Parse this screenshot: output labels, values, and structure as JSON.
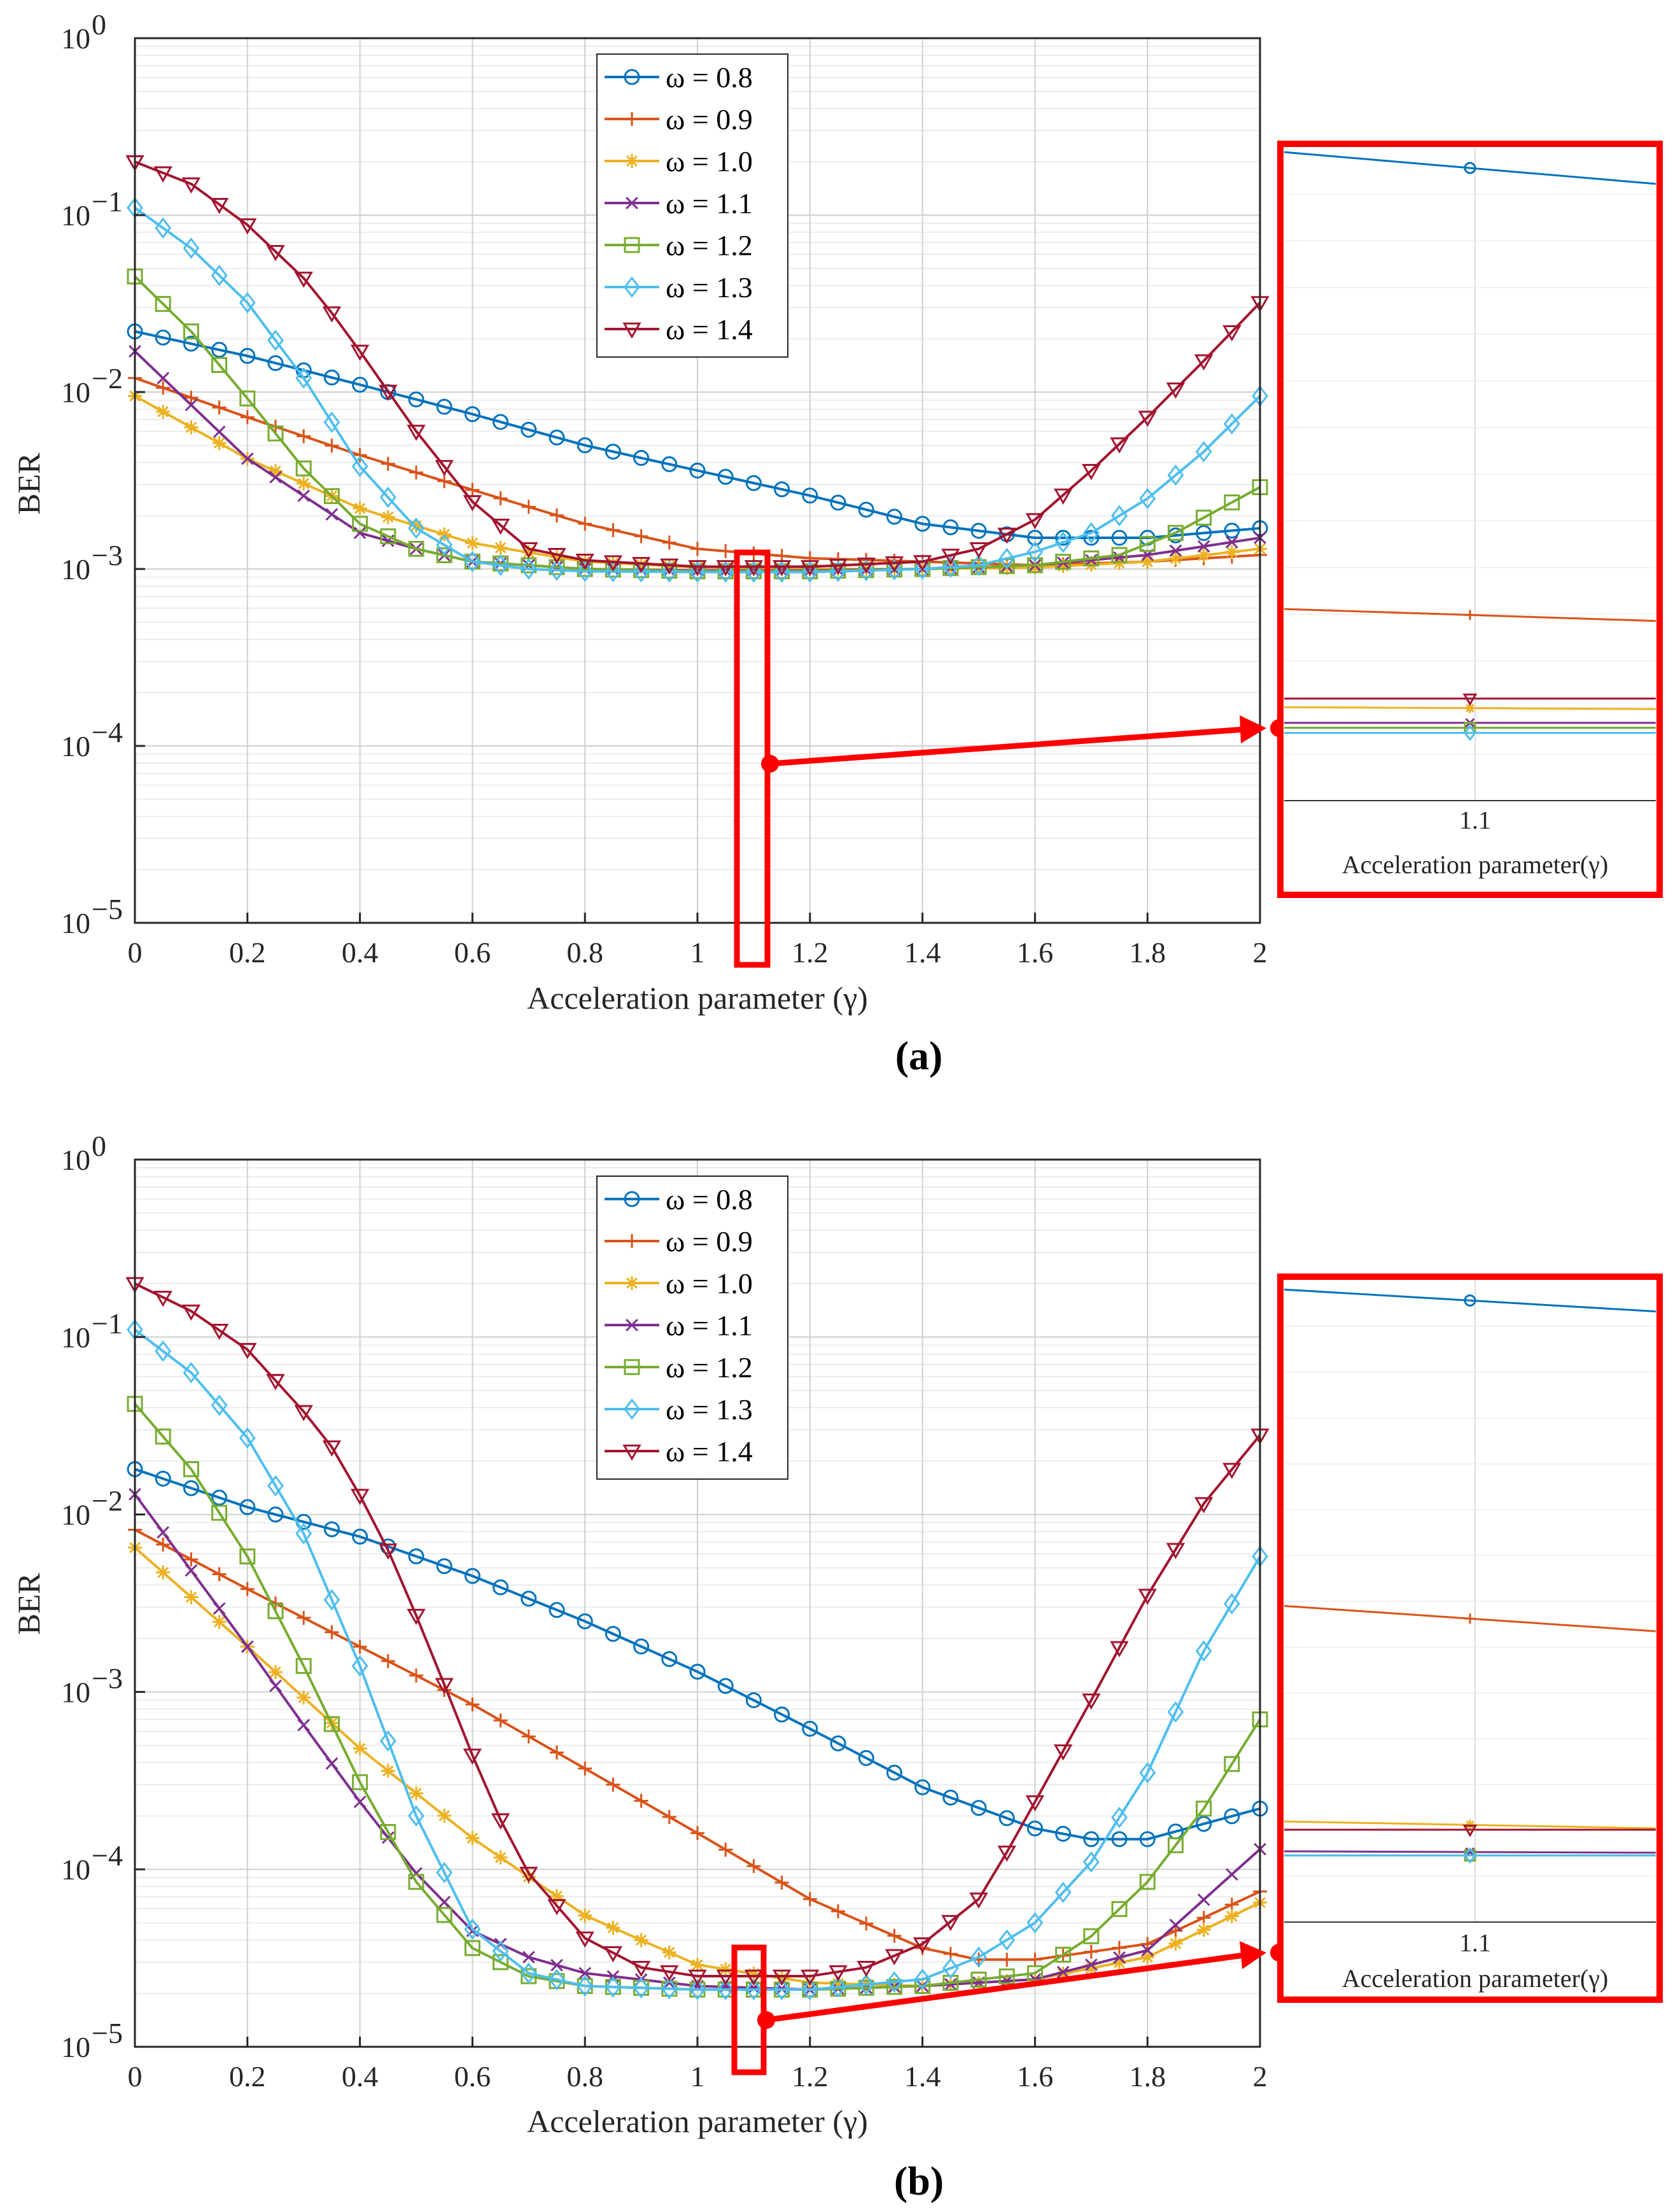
{
  "colors": {
    "s08": "#0072BD",
    "s09": "#D95319",
    "s10": "#EDB120",
    "s11": "#7E2F8E",
    "s12": "#77AC30",
    "s13": "#4DBEEE",
    "s14": "#A2142F",
    "highlight": "#FF0000"
  },
  "chart_data": [
    {
      "panel_label": "(a)",
      "type": "line",
      "yscale": "log",
      "xlabel": "Acceleration parameter (γ)",
      "ylabel": "BER",
      "xlim": [
        0,
        2
      ],
      "ylim_exp": [
        -5,
        0
      ],
      "x_ticks": [
        "0",
        "0.2",
        "0.4",
        "0.6",
        "0.8",
        "1",
        "1.2",
        "1.4",
        "1.6",
        "1.8",
        "2"
      ],
      "y_ticks": [
        {
          "exp": "0"
        },
        {
          "exp": "−1"
        },
        {
          "exp": "−2"
        },
        {
          "exp": "−3"
        },
        {
          "exp": "−4"
        },
        {
          "exp": "−5"
        }
      ],
      "grid": true,
      "legend_position": "top-center",
      "series": [
        {
          "name": "ω = 0.8",
          "omega": "0.8",
          "marker": "circle",
          "anchors": [
            [
              0,
              0.022
            ],
            [
              0.2,
              0.016
            ],
            [
              0.4,
              0.011
            ],
            [
              0.6,
              0.0075
            ],
            [
              0.8,
              0.005
            ],
            [
              1.0,
              0.0036
            ],
            [
              1.2,
              0.0026
            ],
            [
              1.4,
              0.0018
            ],
            [
              1.6,
              0.0015
            ],
            [
              1.8,
              0.0015
            ],
            [
              2.0,
              0.0017
            ]
          ]
        },
        {
          "name": "ω = 0.9",
          "omega": "0.9",
          "marker": "plus",
          "anchors": [
            [
              0,
              0.012
            ],
            [
              0.2,
              0.0072
            ],
            [
              0.4,
              0.0044
            ],
            [
              0.6,
              0.0028
            ],
            [
              0.8,
              0.0018
            ],
            [
              1.0,
              0.0013
            ],
            [
              1.2,
              0.00115
            ],
            [
              1.4,
              0.0011
            ],
            [
              1.6,
              0.00105
            ],
            [
              1.8,
              0.0011
            ],
            [
              2.0,
              0.0012
            ]
          ]
        },
        {
          "name": "ω = 1.0",
          "omega": "1.0",
          "marker": "star",
          "anchors": [
            [
              0,
              0.0095
            ],
            [
              0.2,
              0.0042
            ],
            [
              0.4,
              0.0022
            ],
            [
              0.6,
              0.0014
            ],
            [
              0.8,
              0.0011
            ],
            [
              1.0,
              0.00102
            ],
            [
              1.2,
              0.001
            ],
            [
              1.4,
              0.001
            ],
            [
              1.6,
              0.00102
            ],
            [
              1.8,
              0.0011
            ],
            [
              2.0,
              0.0013
            ]
          ]
        },
        {
          "name": "ω = 1.1",
          "omega": "1.1",
          "marker": "cross",
          "anchors": [
            [
              0,
              0.017
            ],
            [
              0.2,
              0.0042
            ],
            [
              0.4,
              0.0016
            ],
            [
              0.5,
              0.0013
            ],
            [
              0.6,
              0.0011
            ],
            [
              0.8,
              0.001
            ],
            [
              1.0,
              0.00098
            ],
            [
              1.2,
              0.00098
            ],
            [
              1.4,
              0.001
            ],
            [
              1.6,
              0.00105
            ],
            [
              1.8,
              0.0012
            ],
            [
              2.0,
              0.0015
            ]
          ]
        },
        {
          "name": "ω = 1.2",
          "omega": "1.2",
          "marker": "square",
          "anchors": [
            [
              0,
              0.045
            ],
            [
              0.1,
              0.022
            ],
            [
              0.2,
              0.0092
            ],
            [
              0.3,
              0.0037
            ],
            [
              0.4,
              0.0018
            ],
            [
              0.5,
              0.0013
            ],
            [
              0.6,
              0.0011
            ],
            [
              0.8,
              0.001
            ],
            [
              1.0,
              0.00097
            ],
            [
              1.2,
              0.00097
            ],
            [
              1.4,
              0.001
            ],
            [
              1.6,
              0.00105
            ],
            [
              1.75,
              0.0012
            ],
            [
              1.85,
              0.0016
            ],
            [
              2.0,
              0.0029
            ]
          ]
        },
        {
          "name": "ω = 1.3",
          "omega": "1.3",
          "marker": "diamond",
          "anchors": [
            [
              0,
              0.11
            ],
            [
              0.1,
              0.065
            ],
            [
              0.2,
              0.032
            ],
            [
              0.3,
              0.012
            ],
            [
              0.4,
              0.0038
            ],
            [
              0.5,
              0.0017
            ],
            [
              0.6,
              0.0011
            ],
            [
              0.7,
              0.001
            ],
            [
              0.8,
              0.00097
            ],
            [
              1.0,
              0.00096
            ],
            [
              1.2,
              0.00096
            ],
            [
              1.4,
              0.001
            ],
            [
              1.5,
              0.00105
            ],
            [
              1.6,
              0.00125
            ],
            [
              1.7,
              0.0016
            ],
            [
              1.8,
              0.0025
            ],
            [
              1.9,
              0.0046
            ],
            [
              2.0,
              0.0095
            ]
          ]
        },
        {
          "name": "ω = 1.4",
          "omega": "1.4",
          "marker": "triangle-down",
          "anchors": [
            [
              0,
              0.2
            ],
            [
              0.1,
              0.15
            ],
            [
              0.2,
              0.088
            ],
            [
              0.3,
              0.044
            ],
            [
              0.35,
              0.028
            ],
            [
              0.4,
              0.017
            ],
            [
              0.5,
              0.006
            ],
            [
              0.6,
              0.0024
            ],
            [
              0.7,
              0.0013
            ],
            [
              0.8,
              0.00112
            ],
            [
              1.0,
              0.00103
            ],
            [
              1.2,
              0.00103
            ],
            [
              1.4,
              0.0011
            ],
            [
              1.5,
              0.0013
            ],
            [
              1.6,
              0.0019
            ],
            [
              1.7,
              0.0036
            ],
            [
              1.8,
              0.0072
            ],
            [
              1.9,
              0.015
            ],
            [
              2.0,
              0.032
            ]
          ]
        }
      ],
      "inset": {
        "x_tick": "1.1",
        "xlabel": "Acceleration parameter(γ)"
      }
    },
    {
      "panel_label": "(b)",
      "type": "line",
      "yscale": "log",
      "xlabel": "Acceleration parameter (γ)",
      "ylabel": "BER",
      "xlim": [
        0,
        2
      ],
      "ylim_exp": [
        -5,
        0
      ],
      "x_ticks": [
        "0",
        "0.2",
        "0.4",
        "0.6",
        "0.8",
        "1",
        "1.2",
        "1.4",
        "1.6",
        "1.8",
        "2"
      ],
      "y_ticks": [
        {
          "exp": "0"
        },
        {
          "exp": "−1"
        },
        {
          "exp": "−2"
        },
        {
          "exp": "−3"
        },
        {
          "exp": "−4"
        },
        {
          "exp": "−5"
        }
      ],
      "grid": true,
      "legend_position": "top-center",
      "series": [
        {
          "name": "ω = 0.8",
          "omega": "0.8",
          "marker": "circle",
          "anchors": [
            [
              0,
              0.018
            ],
            [
              0.2,
              0.011
            ],
            [
              0.4,
              0.0075
            ],
            [
              0.6,
              0.0045
            ],
            [
              0.8,
              0.0025
            ],
            [
              1.0,
              0.0013
            ],
            [
              1.2,
              0.00062
            ],
            [
              1.4,
              0.00029
            ],
            [
              1.6,
              0.00017
            ],
            [
              1.7,
              0.000148
            ],
            [
              1.8,
              0.000148
            ],
            [
              2.0,
              0.00022
            ]
          ]
        },
        {
          "name": "ω = 0.9",
          "omega": "0.9",
          "marker": "plus",
          "anchors": [
            [
              0,
              0.0082
            ],
            [
              0.2,
              0.0038
            ],
            [
              0.4,
              0.0018
            ],
            [
              0.6,
              0.00085
            ],
            [
              0.8,
              0.00037
            ],
            [
              1.0,
              0.00016
            ],
            [
              1.2,
              6.8e-05
            ],
            [
              1.4,
              3.6e-05
            ],
            [
              1.5,
              3.1e-05
            ],
            [
              1.6,
              3.1e-05
            ],
            [
              1.8,
              3.8e-05
            ],
            [
              2.0,
              7.5e-05
            ]
          ]
        },
        {
          "name": "ω = 1.0",
          "omega": "1.0",
          "marker": "star",
          "anchors": [
            [
              0,
              0.0065
            ],
            [
              0.2,
              0.0018
            ],
            [
              0.4,
              0.00048
            ],
            [
              0.6,
              0.00015
            ],
            [
              0.8,
              5.5e-05
            ],
            [
              1.0,
              2.9e-05
            ],
            [
              1.2,
              2.3e-05
            ],
            [
              1.4,
              2.2e-05
            ],
            [
              1.6,
              2.4e-05
            ],
            [
              1.8,
              3.2e-05
            ],
            [
              2.0,
              6.5e-05
            ]
          ]
        },
        {
          "name": "ω = 1.1",
          "omega": "1.1",
          "marker": "cross",
          "anchors": [
            [
              0,
              0.013
            ],
            [
              0.2,
              0.0018
            ],
            [
              0.3,
              0.00065
            ],
            [
              0.4,
              0.00024
            ],
            [
              0.5,
              9.5e-05
            ],
            [
              0.6,
              4.5e-05
            ],
            [
              0.7,
              3.2e-05
            ],
            [
              0.8,
              2.6e-05
            ],
            [
              1.0,
              2.2e-05
            ],
            [
              1.2,
              2.1e-05
            ],
            [
              1.4,
              2.2e-05
            ],
            [
              1.6,
              2.4e-05
            ],
            [
              1.8,
              3.5e-05
            ],
            [
              2.0,
              0.00013
            ]
          ]
        },
        {
          "name": "ω = 1.2",
          "omega": "1.2",
          "marker": "square",
          "anchors": [
            [
              0,
              0.042
            ],
            [
              0.1,
              0.018
            ],
            [
              0.2,
              0.0058
            ],
            [
              0.3,
              0.0014
            ],
            [
              0.4,
              0.00031
            ],
            [
              0.5,
              8.5e-05
            ],
            [
              0.6,
              3.6e-05
            ],
            [
              0.7,
              2.5e-05
            ],
            [
              0.8,
              2.2e-05
            ],
            [
              1.0,
              2.1e-05
            ],
            [
              1.2,
              2.1e-05
            ],
            [
              1.4,
              2.2e-05
            ],
            [
              1.6,
              2.6e-05
            ],
            [
              1.7,
              4.2e-05
            ],
            [
              1.8,
              8.5e-05
            ],
            [
              1.9,
              0.00022
            ],
            [
              2.0,
              0.0007
            ]
          ]
        },
        {
          "name": "ω = 1.3",
          "omega": "1.3",
          "marker": "diamond",
          "anchors": [
            [
              0,
              0.11
            ],
            [
              0.1,
              0.063
            ],
            [
              0.2,
              0.027
            ],
            [
              0.3,
              0.0078
            ],
            [
              0.4,
              0.0014
            ],
            [
              0.5,
              0.0002
            ],
            [
              0.6,
              4.6e-05
            ],
            [
              0.7,
              2.6e-05
            ],
            [
              0.8,
              2.2e-05
            ],
            [
              1.0,
              2.1e-05
            ],
            [
              1.2,
              2.1e-05
            ],
            [
              1.4,
              2.4e-05
            ],
            [
              1.5,
              3.2e-05
            ],
            [
              1.6,
              5e-05
            ],
            [
              1.7,
              0.00011
            ],
            [
              1.8,
              0.00035
            ],
            [
              1.9,
              0.0017
            ],
            [
              2.0,
              0.0058
            ]
          ]
        },
        {
          "name": "ω = 1.4",
          "omega": "1.4",
          "marker": "triangle-down",
          "anchors": [
            [
              0,
              0.2
            ],
            [
              0.1,
              0.14
            ],
            [
              0.2,
              0.085
            ],
            [
              0.3,
              0.038
            ],
            [
              0.35,
              0.024
            ],
            [
              0.4,
              0.0128
            ],
            [
              0.45,
              0.0063
            ],
            [
              0.5,
              0.0027
            ],
            [
              0.55,
              0.0011
            ],
            [
              0.6,
              0.00044
            ],
            [
              0.65,
              0.00019
            ],
            [
              0.7,
              9.5e-05
            ],
            [
              0.8,
              4.1e-05
            ],
            [
              0.9,
              2.8e-05
            ],
            [
              1.0,
              2.5e-05
            ],
            [
              1.2,
              2.5e-05
            ],
            [
              1.3,
              2.8e-05
            ],
            [
              1.4,
              3.8e-05
            ],
            [
              1.5,
              6.8e-05
            ],
            [
              1.55,
              0.000125
            ],
            [
              1.6,
              0.00024
            ],
            [
              1.7,
              0.0009
            ],
            [
              1.8,
              0.0035
            ],
            [
              1.9,
              0.0115
            ],
            [
              2.0,
              0.028
            ]
          ]
        }
      ],
      "inset": {
        "x_tick": "1.1",
        "xlabel": "Acceleration parameter(γ)"
      }
    }
  ]
}
